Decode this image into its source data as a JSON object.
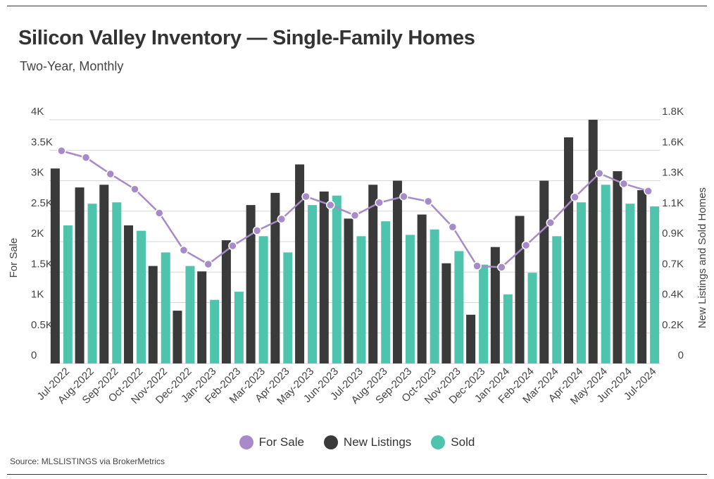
{
  "title": "Silicon Valley Inventory — Single-Family Homes",
  "subtitle": "Two-Year, Monthly",
  "source": "Source:  MLSLISTINGS via BrokerMetrics",
  "colors": {
    "for_sale": "#a68bc8",
    "new_listings": "#3a3a3a",
    "sold": "#4fc4ad",
    "grid": "#d6d6d6"
  },
  "chart_data": {
    "type": "bar",
    "categories": [
      "Jul-2022",
      "Aug-2022",
      "Sep-2022",
      "Oct-2022",
      "Nov-2022",
      "Dec-2022",
      "Jan-2023",
      "Feb-2023",
      "Mar-2023",
      "Apr-2023",
      "May-2023",
      "Jun-2023",
      "Jul-2023",
      "Aug-2023",
      "Sep-2023",
      "Oct-2023",
      "Nov-2023",
      "Dec-2023",
      "Jan-2024",
      "Feb-2024",
      "Mar-2024",
      "Apr-2024",
      "May-2024",
      "Jun-2024",
      "Jul-2024"
    ],
    "series": [
      {
        "name": "For Sale",
        "type": "line",
        "axis": "left",
        "values": [
          3490,
          3380,
          3110,
          2860,
          2470,
          1860,
          1630,
          1930,
          2180,
          2370,
          2740,
          2600,
          2430,
          2640,
          2740,
          2660,
          2240,
          1600,
          1580,
          1940,
          2310,
          2730,
          3120,
          2950,
          2830
        ]
      },
      {
        "name": "New Listings",
        "type": "bar",
        "axis": "right",
        "values": [
          1440,
          1300,
          1320,
          1020,
          720,
          390,
          680,
          910,
          1170,
          1260,
          1470,
          1270,
          1070,
          1320,
          1350,
          1100,
          740,
          360,
          860,
          1090,
          1350,
          1670,
          1800,
          1420,
          1280
        ]
      },
      {
        "name": "Sold",
        "type": "bar",
        "axis": "right",
        "values": [
          1020,
          1180,
          1190,
          980,
          820,
          720,
          470,
          530,
          940,
          820,
          1170,
          1240,
          940,
          1050,
          950,
          990,
          830,
          730,
          510,
          670,
          940,
          1190,
          1320,
          1180,
          1160
        ]
      }
    ],
    "ylabel": "For Sale",
    "y2label": "New Listings and Sold Homes",
    "yticks": [
      "0",
      "0.5K",
      "1K",
      "1.5K",
      "2K",
      "2.5K",
      "3K",
      "3.5K",
      "4K"
    ],
    "y2ticks": [
      "0",
      "0.2K",
      "0.4K",
      "0.7K",
      "0.9K",
      "1.1K",
      "1.3K",
      "1.6K",
      "1.8K"
    ],
    "ylim": [
      0,
      4000
    ],
    "y2lim": [
      0,
      1800
    ],
    "grid": true,
    "legend_position": "bottom-center"
  }
}
